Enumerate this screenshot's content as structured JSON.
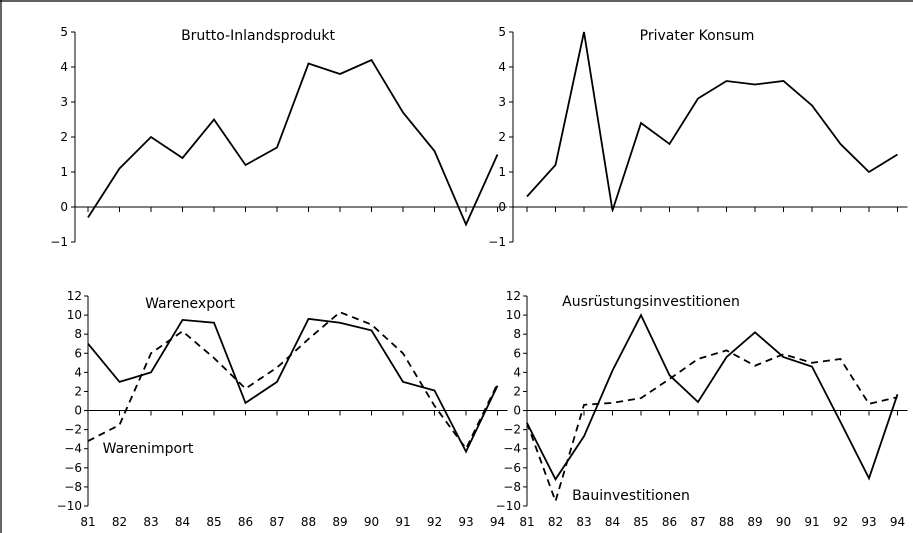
{
  "chart_data": [
    {
      "type": "line",
      "title": "Brutto-Inlandsprodukt",
      "categories": [
        "81",
        "82",
        "83",
        "84",
        "85",
        "86",
        "87",
        "88",
        "89",
        "90",
        "91",
        "92",
        "93",
        "94"
      ],
      "ylim": [
        -1,
        5
      ],
      "yticks": [
        -1,
        0,
        1,
        2,
        3,
        4,
        5
      ],
      "show_x_labels": false,
      "series": [
        {
          "dash": "solid",
          "values": [
            -0.3,
            1.1,
            2.0,
            1.4,
            2.5,
            1.2,
            1.7,
            4.1,
            3.8,
            4.2,
            2.7,
            1.6,
            -0.5,
            1.5
          ]
        }
      ]
    },
    {
      "type": "line",
      "title": "Privater Konsum",
      "categories": [
        "81",
        "82",
        "83",
        "84",
        "85",
        "86",
        "87",
        "88",
        "89",
        "90",
        "91",
        "92",
        "93",
        "94"
      ],
      "ylim": [
        -1,
        5
      ],
      "yticks": [
        -1,
        0,
        1,
        2,
        3,
        4,
        5
      ],
      "show_x_labels": false,
      "series": [
        {
          "dash": "solid",
          "values": [
            0.3,
            1.2,
            5.0,
            -0.1,
            2.4,
            1.8,
            3.1,
            3.6,
            3.5,
            3.6,
            2.9,
            1.8,
            1.0,
            1.5
          ]
        }
      ]
    },
    {
      "type": "line",
      "title": "",
      "categories": [
        "81",
        "82",
        "83",
        "84",
        "85",
        "86",
        "87",
        "88",
        "89",
        "90",
        "91",
        "92",
        "93",
        "94"
      ],
      "ylim": [
        -10,
        12
      ],
      "yticks": [
        -10,
        -8,
        -6,
        -4,
        -2,
        0,
        2,
        4,
        6,
        8,
        10,
        12
      ],
      "show_x_labels": true,
      "series_labels": [
        "Warenexport",
        "Warenimport"
      ],
      "series": [
        {
          "name": "Warenexport",
          "dash": "solid",
          "values": [
            7.0,
            3.0,
            4.0,
            9.5,
            9.2,
            0.8,
            3.0,
            9.6,
            9.2,
            8.4,
            3.0,
            2.1,
            -4.3,
            2.6
          ]
        },
        {
          "name": "Warenimport",
          "dash": "dashed",
          "values": [
            -3.2,
            -1.5,
            6.0,
            8.3,
            5.5,
            2.3,
            4.5,
            7.5,
            10.3,
            9.0,
            6.0,
            0.5,
            -4.0,
            2.8
          ]
        }
      ]
    },
    {
      "type": "line",
      "title": "",
      "categories": [
        "81",
        "82",
        "83",
        "84",
        "85",
        "86",
        "87",
        "88",
        "89",
        "90",
        "91",
        "92",
        "93",
        "94"
      ],
      "ylim": [
        -10,
        12
      ],
      "yticks": [
        -10,
        -8,
        -6,
        -4,
        -2,
        0,
        2,
        4,
        6,
        8,
        10,
        12
      ],
      "show_x_labels": true,
      "series_labels": [
        "Ausrüstungsinvestitionen",
        "Bauinvestitionen"
      ],
      "series": [
        {
          "name": "Ausrüstungsinvestitionen",
          "dash": "solid",
          "values": [
            -1.3,
            -7.2,
            -2.7,
            4.2,
            10.0,
            3.7,
            0.9,
            5.6,
            8.2,
            5.6,
            4.6,
            -1.2,
            -7.1,
            1.7
          ]
        },
        {
          "name": "Bauinvestitionen",
          "dash": "dashed",
          "values": [
            -1.3,
            -9.5,
            0.6,
            0.8,
            1.3,
            3.3,
            5.4,
            6.3,
            4.7,
            5.9,
            5.0,
            5.4,
            0.7,
            1.4
          ]
        }
      ]
    }
  ]
}
